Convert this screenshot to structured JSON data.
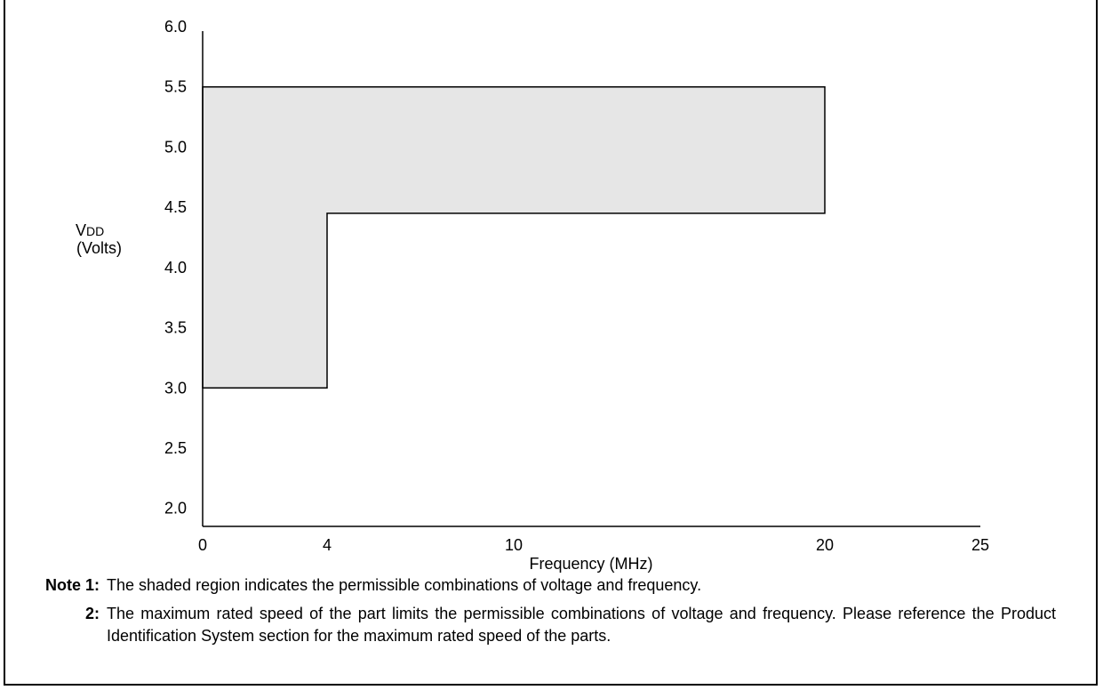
{
  "chart_data": {
    "type": "area",
    "title": "",
    "xlabel": "Frequency (MHz)",
    "ylabel_line1_main": "V",
    "ylabel_line1_sub": "DD",
    "ylabel_line2": "(Volts)",
    "x_ticks": [
      {
        "value": 0,
        "label": "0"
      },
      {
        "value": 4,
        "label": "4"
      },
      {
        "value": 10,
        "label": "10"
      },
      {
        "value": 20,
        "label": "20"
      },
      {
        "value": 25,
        "label": "25"
      }
    ],
    "y_ticks": [
      {
        "value": 2.0,
        "label": "2.0"
      },
      {
        "value": 2.5,
        "label": "2.5"
      },
      {
        "value": 3.0,
        "label": "3.0"
      },
      {
        "value": 3.5,
        "label": "3.5"
      },
      {
        "value": 4.0,
        "label": "4.0"
      },
      {
        "value": 4.5,
        "label": "4.5"
      },
      {
        "value": 5.0,
        "label": "5.0"
      },
      {
        "value": 5.5,
        "label": "5.5"
      },
      {
        "value": 6.0,
        "label": "6.0"
      }
    ],
    "xlim": [
      0,
      25
    ],
    "ylim": [
      1.85,
      6.0
    ],
    "region": [
      {
        "x": 0,
        "y": 3.0
      },
      {
        "x": 4,
        "y": 3.0
      },
      {
        "x": 4,
        "y": 4.45
      },
      {
        "x": 20,
        "y": 4.45
      },
      {
        "x": 20,
        "y": 5.5
      },
      {
        "x": 0,
        "y": 5.5
      }
    ],
    "region_fill": "#e6e6e6",
    "grid": false
  },
  "notes": {
    "note1_label": "Note 1:",
    "note1_text": "The shaded region indicates the permissible combinations of voltage and frequency.",
    "note2_label": "2:",
    "note2_text": "The maximum rated speed of the part limits the permissible combinations of voltage and frequency. Please reference the Product Identification System section for the maximum rated speed of the parts."
  }
}
